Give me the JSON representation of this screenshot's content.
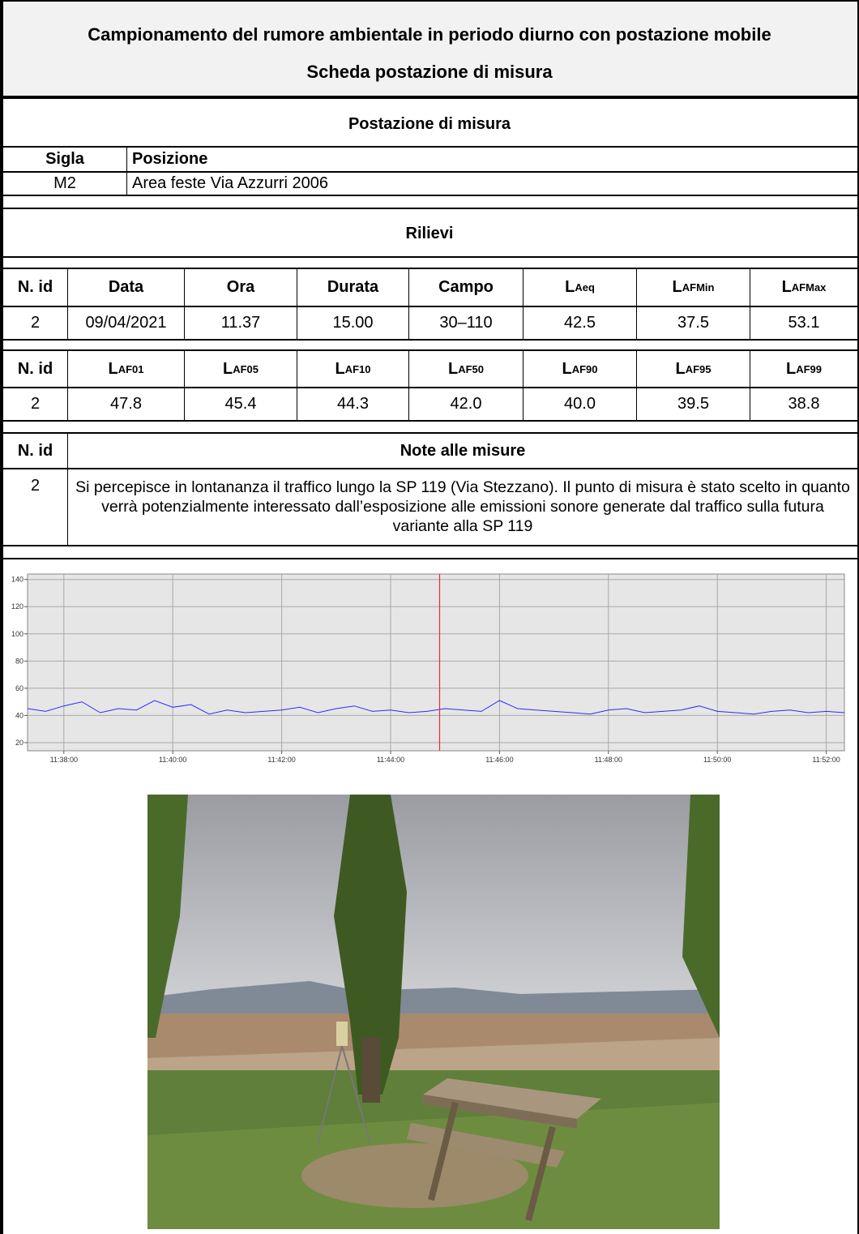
{
  "header": {
    "title": "Campionamento del rumore ambientale in periodo diurno con postazione mobile",
    "subtitle": "Scheda postazione di misura"
  },
  "postazione": {
    "heading": "Postazione di misura",
    "columns": [
      "Sigla",
      "Posizione"
    ],
    "row": [
      "M2",
      "Area feste Via Azzurri 2006"
    ]
  },
  "rilievi": {
    "heading": "Rilievi",
    "table1": {
      "columns": [
        "N. id",
        "Data",
        "Ora",
        "Durata",
        "Campo",
        {
          "text": "L",
          "sub": "Aeq"
        },
        {
          "text": "L",
          "sub": "AFMin"
        },
        {
          "text": "L",
          "sub": "AFMax"
        }
      ],
      "row": [
        "2",
        "09/04/2021",
        "11.37",
        "15.00",
        "30–110",
        "42.5",
        "37.5",
        "53.1"
      ]
    },
    "table2": {
      "columns": [
        "N. id",
        {
          "text": "L",
          "sub": "AF01"
        },
        {
          "text": "L",
          "sub": "AF05"
        },
        {
          "text": "L",
          "sub": "AF10"
        },
        {
          "text": "L",
          "sub": "AF50"
        },
        {
          "text": "L",
          "sub": "AF90"
        },
        {
          "text": "L",
          "sub": "AF95"
        },
        {
          "text": "L",
          "sub": "AF99"
        }
      ],
      "row": [
        "2",
        "47.8",
        "45.4",
        "44.3",
        "42.0",
        "40.0",
        "39.5",
        "38.8"
      ]
    },
    "notes": {
      "columns": [
        "N. id",
        "Note alle misure"
      ],
      "row": [
        "2",
        "Si percepisce in lontananza il traffico lungo la SP 119 (Via Stezzano). Il punto di misura è stato scelto in quanto verrà potenzialmente  interessato dall’esposizione alle emissioni sonore generate dal traffico sulla futura variante alla SP 119"
      ]
    }
  },
  "chart_data": {
    "type": "line",
    "x": [
      "11:37:20",
      "11:37:40",
      "11:38:00",
      "11:38:20",
      "11:38:40",
      "11:39:00",
      "11:39:20",
      "11:39:40",
      "11:40:00",
      "11:40:20",
      "11:40:40",
      "11:41:00",
      "11:41:20",
      "11:41:40",
      "11:42:00",
      "11:42:20",
      "11:42:40",
      "11:43:00",
      "11:43:20",
      "11:43:40",
      "11:44:00",
      "11:44:20",
      "11:44:40",
      "11:45:00",
      "11:45:20",
      "11:45:40",
      "11:46:00",
      "11:46:20",
      "11:46:40",
      "11:47:00",
      "11:47:20",
      "11:47:40",
      "11:48:00",
      "11:48:20",
      "11:48:40",
      "11:49:00",
      "11:49:20",
      "11:49:40",
      "11:50:00",
      "11:50:20",
      "11:50:40",
      "11:51:00",
      "11:51:20",
      "11:51:40",
      "11:52:00",
      "11:52:20"
    ],
    "series": [
      {
        "color": "#2a2aff",
        "values": [
          45,
          43,
          47,
          50,
          42,
          45,
          44,
          51,
          46,
          48,
          41,
          44,
          42,
          43,
          44,
          46,
          42,
          45,
          47,
          43,
          44,
          42,
          43,
          45,
          44,
          43,
          51,
          45,
          44,
          43,
          42,
          41,
          44,
          45,
          42,
          43,
          44,
          47,
          43,
          42,
          41,
          43,
          44,
          42,
          43,
          42
        ]
      }
    ],
    "xlim": [
      "11:37:20",
      "11:52:20"
    ],
    "xticks": [
      "11:38:00",
      "11:40:00",
      "11:42:00",
      "11:44:00",
      "11:46:00",
      "11:48:00",
      "11:50:00",
      "11:52:00"
    ],
    "ylim": [
      14,
      144
    ],
    "yticks": [
      20,
      40,
      60,
      80,
      100,
      120,
      140
    ],
    "grid": true,
    "cursor": {
      "x": "11:44:54",
      "color": "#e03030"
    }
  }
}
